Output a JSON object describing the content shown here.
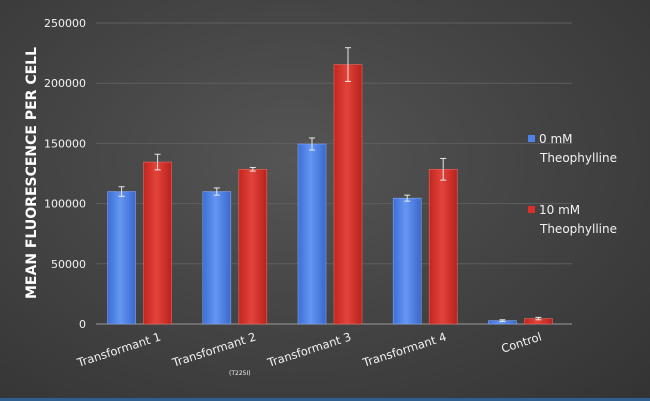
{
  "chart_data": {
    "type": "bar",
    "title": "",
    "xlabel": "",
    "ylabel": "MEAN FLUORESCENCE PER CELL",
    "ylim": [
      0,
      250000
    ],
    "yticks": [
      "0",
      "50000",
      "100000",
      "150000",
      "200000",
      "250000"
    ],
    "grid": true,
    "legend_position": "right",
    "categories": [
      "Transformant 1",
      "Transformant 2",
      "Transformant 3",
      "Transformant 4",
      "Control"
    ],
    "category_notes": [
      "",
      "(T225I)",
      "",
      "",
      ""
    ],
    "series": [
      {
        "name_lines": [
          "0 mM",
          "Theophylline"
        ],
        "color": "#4f81e8",
        "values": [
          110000,
          110000,
          149500,
          104500,
          2800
        ],
        "errors": [
          4000,
          3000,
          5000,
          2500,
          700
        ]
      },
      {
        "name_lines": [
          "10 mM",
          "Theophylline"
        ],
        "color": "#d9312a",
        "values": [
          134500,
          128500,
          215500,
          128500,
          4500
        ],
        "errors": [
          6500,
          1500,
          14000,
          9000,
          1000
        ]
      }
    ]
  }
}
